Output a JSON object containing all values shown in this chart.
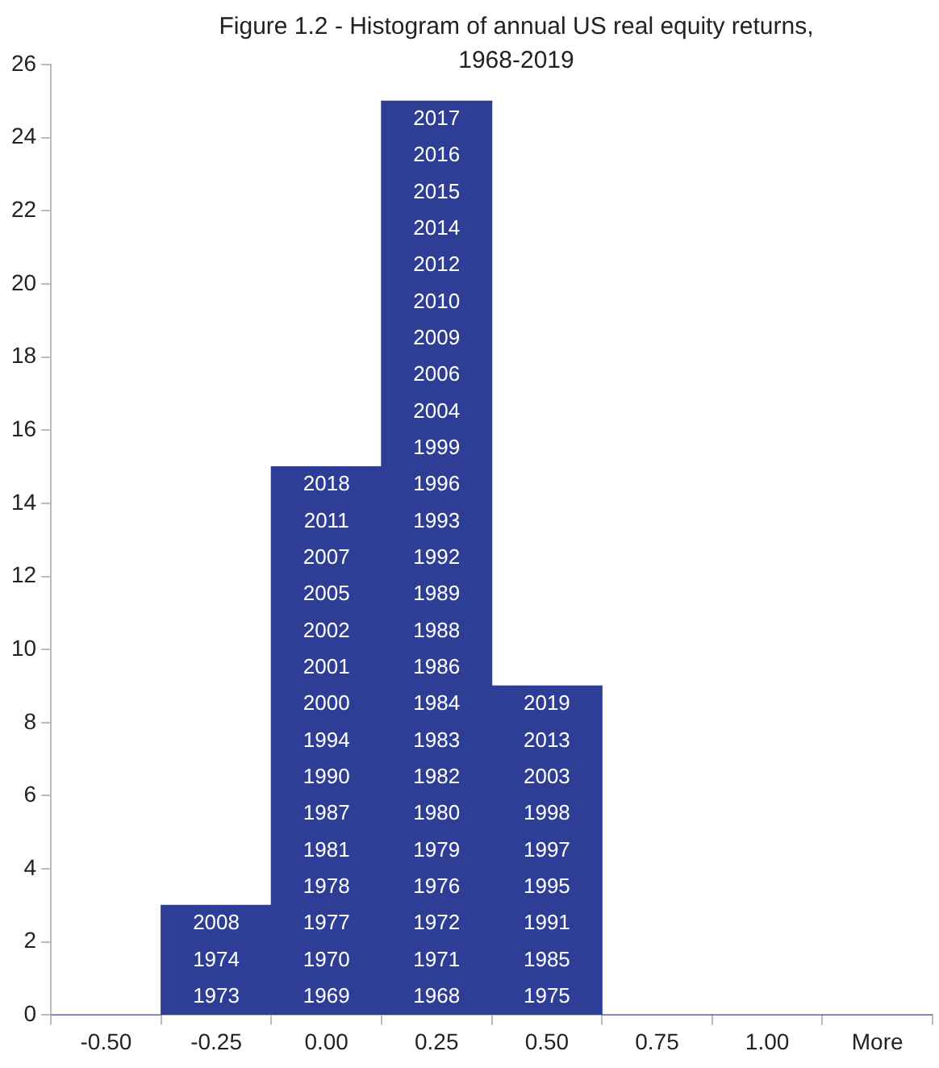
{
  "chart_data": {
    "type": "bar",
    "title": "Figure 1.2 - Histogram of annual US real equity returns, 1968-2019",
    "categories": [
      "-0.50",
      "-0.25",
      "0.00",
      "0.25",
      "0.50",
      "0.75",
      "1.00",
      "More"
    ],
    "values": [
      0,
      3,
      15,
      25,
      9,
      0,
      0,
      0
    ],
    "color": "#2e3e96",
    "ylim": [
      0,
      26
    ],
    "yticks": [
      0,
      2,
      4,
      6,
      8,
      10,
      12,
      14,
      16,
      18,
      20,
      22,
      24,
      26
    ],
    "grid": false,
    "legend": false,
    "annotations": [
      "1973",
      "1974",
      "2008",
      "1969",
      "1970",
      "1977",
      "1978",
      "1981",
      "1987",
      "1990",
      "1994",
      "2000",
      "2001",
      "2002",
      "2005",
      "2007",
      "2011",
      "2018",
      "1968",
      "1971",
      "1972",
      "1976",
      "1979",
      "1980",
      "1982",
      "1983",
      "1984",
      "1986",
      "1988",
      "1989",
      "1992",
      "1993",
      "1996",
      "1999",
      "2004",
      "2006",
      "2009",
      "2010",
      "2012",
      "2014",
      "2015",
      "2016",
      "2017",
      "1975",
      "1985",
      "1991",
      "1995",
      "1997",
      "1998",
      "2003",
      "2013",
      "2019"
    ]
  }
}
